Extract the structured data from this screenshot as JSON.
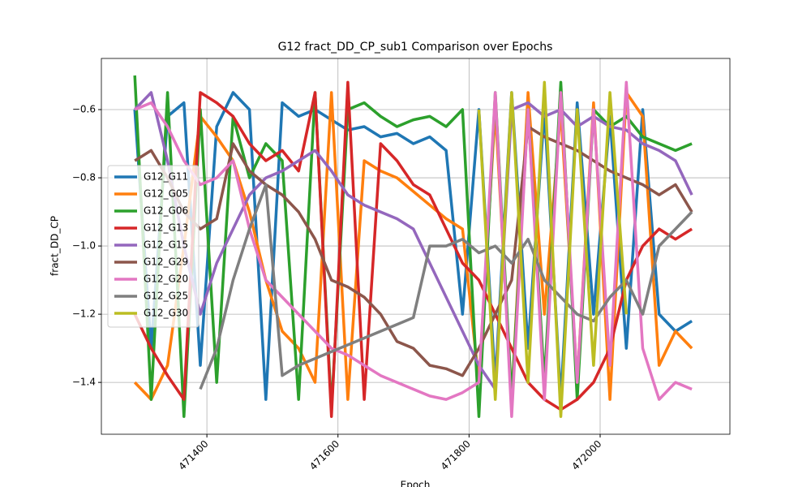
{
  "chart_data": {
    "type": "line",
    "title": "G12 fract_DD_CP_sub1 Comparison over Epochs",
    "xlabel": "Epoch",
    "ylabel": "fract_DD_CP",
    "x": [
      471290,
      471315,
      471340,
      471365,
      471390,
      471415,
      471440,
      471465,
      471490,
      471515,
      471540,
      471565,
      471590,
      471615,
      471640,
      471665,
      471690,
      471715,
      471740,
      471765,
      471790,
      471815,
      471840,
      471865,
      471890,
      471915,
      471940,
      471965,
      471990,
      472015,
      472040,
      472065,
      472090,
      472115,
      472140
    ],
    "series": [
      {
        "name": "G12_G11",
        "color": "#1f77b4",
        "values": [
          -0.6,
          -1.3,
          -0.62,
          -0.58,
          -1.35,
          -0.65,
          -0.55,
          -0.6,
          -1.45,
          -0.58,
          -0.62,
          -0.6,
          -0.63,
          -0.66,
          -0.65,
          -0.68,
          -0.67,
          -0.7,
          -0.68,
          -0.72,
          -1.2,
          -0.6,
          -1.4,
          -0.55,
          -1.3,
          -0.6,
          -1.45,
          -0.58,
          -1.2,
          -0.62,
          -1.3,
          -0.6,
          -1.2,
          -1.25,
          -1.22
        ]
      },
      {
        "name": "G12_G05",
        "color": "#ff7f0e",
        "values": [
          -1.4,
          -1.45,
          -1.35,
          -1.0,
          -0.62,
          -0.68,
          -0.75,
          -0.9,
          -1.1,
          -1.25,
          -1.3,
          -1.4,
          -0.55,
          -1.45,
          -0.75,
          -0.78,
          -0.8,
          -0.84,
          -0.88,
          -0.92,
          -0.95,
          -1.4,
          -0.6,
          -1.45,
          -0.55,
          -1.2,
          -0.6,
          -1.4,
          -0.58,
          -1.45,
          -0.55,
          -0.62,
          -1.35,
          -1.25,
          -1.3
        ]
      },
      {
        "name": "G12_G06",
        "color": "#2ca02c",
        "values": [
          -0.5,
          -1.45,
          -0.55,
          -1.5,
          -0.6,
          -1.4,
          -0.62,
          -0.8,
          -0.7,
          -0.75,
          -1.45,
          -0.55,
          -1.48,
          -0.6,
          -0.58,
          -0.62,
          -0.65,
          -0.63,
          -0.62,
          -0.65,
          -0.6,
          -1.5,
          -0.55,
          -1.45,
          -0.6,
          -1.4,
          -0.52,
          -1.45,
          -0.6,
          -0.65,
          -0.62,
          -0.68,
          -0.7,
          -0.72,
          -0.7
        ]
      },
      {
        "name": "G12_G13",
        "color": "#d62728",
        "values": [
          -1.2,
          -1.3,
          -1.38,
          -1.45,
          -0.55,
          -0.58,
          -0.62,
          -0.7,
          -0.75,
          -0.72,
          -0.78,
          -0.55,
          -1.5,
          -0.52,
          -1.45,
          -0.7,
          -0.75,
          -0.82,
          -0.85,
          -0.95,
          -1.05,
          -1.1,
          -1.2,
          -1.3,
          -1.4,
          -1.45,
          -1.48,
          -1.45,
          -1.4,
          -1.3,
          -1.1,
          -1.0,
          -0.95,
          -0.98,
          -0.95
        ]
      },
      {
        "name": "G12_G15",
        "color": "#9467bd",
        "values": [
          -0.6,
          -0.55,
          -0.75,
          -1.0,
          -1.2,
          -1.05,
          -0.95,
          -0.85,
          -0.8,
          -0.78,
          -0.75,
          -0.72,
          -0.78,
          -0.85,
          -0.88,
          -0.9,
          -0.92,
          -0.95,
          -1.05,
          -1.15,
          -1.25,
          -1.35,
          -1.42,
          -0.6,
          -0.58,
          -0.62,
          -0.6,
          -0.65,
          -0.62,
          -0.65,
          -0.66,
          -0.7,
          -0.72,
          -0.75,
          -0.85
        ]
      },
      {
        "name": "G12_G29",
        "color": "#8c564b",
        "values": [
          -0.75,
          -0.72,
          -0.8,
          -0.9,
          -0.95,
          -0.92,
          -0.7,
          -0.78,
          -0.82,
          -0.85,
          -0.9,
          -0.98,
          -1.1,
          -1.12,
          -1.15,
          -1.2,
          -1.28,
          -1.3,
          -1.35,
          -1.36,
          -1.38,
          -1.3,
          -1.2,
          -1.1,
          -0.65,
          -0.68,
          -0.7,
          -0.72,
          -0.75,
          -0.78,
          -0.8,
          -0.82,
          -0.85,
          -0.82,
          -0.9
        ]
      },
      {
        "name": "G12_G20",
        "color": "#e377c2",
        "values": [
          -0.6,
          -0.58,
          -0.65,
          -0.75,
          -0.82,
          -0.8,
          -0.75,
          -0.95,
          -1.1,
          -1.15,
          -1.2,
          -1.25,
          -1.3,
          -1.32,
          -1.35,
          -1.38,
          -1.4,
          -1.42,
          -1.44,
          -1.45,
          -1.43,
          -1.4,
          -0.55,
          -1.5,
          -0.6,
          -1.45,
          -0.55,
          -1.4,
          -0.6,
          -1.35,
          -0.52,
          -1.3,
          -1.45,
          -1.4,
          -1.42
        ]
      },
      {
        "name": "G12_G25",
        "color": "#7f7f7f",
        "values": [
          null,
          null,
          null,
          null,
          -1.42,
          -1.3,
          -1.1,
          -0.95,
          -0.82,
          -1.38,
          -1.35,
          -1.33,
          -1.31,
          -1.29,
          -1.27,
          -1.25,
          -1.23,
          -1.21,
          -1.0,
          -1.0,
          -0.98,
          -1.02,
          -1.0,
          -1.05,
          -0.98,
          -1.1,
          -1.15,
          -1.2,
          -1.22,
          -1.15,
          -1.1,
          -1.2,
          -1.0,
          -0.95,
          -0.9
        ]
      },
      {
        "name": "G12_G30",
        "color": "#bcbd22",
        "values": [
          null,
          null,
          null,
          null,
          null,
          null,
          null,
          null,
          null,
          null,
          null,
          null,
          null,
          null,
          null,
          null,
          null,
          null,
          null,
          null,
          null,
          -0.6,
          -1.45,
          -0.55,
          -1.4,
          -0.52,
          -1.5,
          -0.6,
          -1.35,
          -0.55,
          -1.2,
          null,
          null,
          null,
          null
        ]
      }
    ],
    "xlim": [
      471239,
      472198
    ],
    "ylim": [
      -1.552,
      -0.45
    ],
    "xticks": [
      471400,
      471600,
      471800,
      472000
    ],
    "yticks": [
      {
        "value": -1.4,
        "label": "−1.4"
      },
      {
        "value": -1.2,
        "label": "−1.2"
      },
      {
        "value": -1.0,
        "label": "−1.0"
      },
      {
        "value": -0.8,
        "label": "−0.8"
      },
      {
        "value": -0.6,
        "label": "−0.6"
      }
    ],
    "grid": true,
    "legend": "center left"
  }
}
